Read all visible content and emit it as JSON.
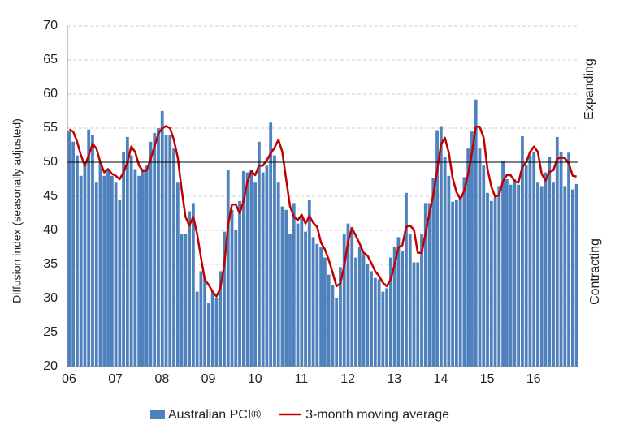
{
  "chart_data": {
    "type": "bar",
    "y_label": "Diffusion index (seasonally adjusted)",
    "annotations": [
      "Expanding",
      "Contracting"
    ],
    "reference_line": 50,
    "ylim": [
      20,
      70
    ],
    "yticks": [
      20,
      25,
      30,
      35,
      40,
      45,
      50,
      55,
      60,
      65,
      70
    ],
    "grid": true,
    "categories": [
      "06",
      null,
      null,
      null,
      null,
      null,
      null,
      null,
      null,
      null,
      null,
      null,
      "07",
      null,
      null,
      null,
      null,
      null,
      null,
      null,
      null,
      null,
      null,
      null,
      "08",
      null,
      null,
      null,
      null,
      null,
      null,
      null,
      null,
      null,
      null,
      null,
      "09",
      null,
      null,
      null,
      null,
      null,
      null,
      null,
      null,
      null,
      null,
      null,
      "10",
      null,
      null,
      null,
      null,
      null,
      null,
      null,
      null,
      null,
      null,
      null,
      "11",
      null,
      null,
      null,
      null,
      null,
      null,
      null,
      null,
      null,
      null,
      null,
      "12",
      null,
      null,
      null,
      null,
      null,
      null,
      null,
      null,
      null,
      null,
      null,
      "13",
      null,
      null,
      null,
      null,
      null,
      null,
      null,
      null,
      null,
      null,
      null,
      "14",
      null,
      null,
      null,
      null,
      null,
      null,
      null,
      null,
      null,
      null,
      null,
      "15",
      null,
      null,
      null,
      null,
      null,
      null,
      null,
      null,
      null,
      null,
      null,
      "16",
      null,
      null,
      null,
      null,
      null,
      null,
      null,
      null,
      null,
      null,
      null
    ],
    "series": [
      {
        "name": "Australian PCI®",
        "type": "bar",
        "color": "#4f81bd",
        "values": [
          54.5,
          53,
          51,
          48,
          50,
          54.8,
          54,
          47,
          50,
          48,
          49,
          48,
          47,
          44.5,
          51.5,
          53.7,
          51,
          49,
          48,
          49,
          49.5,
          53,
          54.3,
          55,
          57.5,
          54,
          54,
          52,
          47,
          39.5,
          39.5,
          42.8,
          44,
          31,
          34,
          33,
          29.3,
          31,
          30,
          34,
          39.8,
          48.8,
          43,
          40,
          44.3,
          48.7,
          48.5,
          48.8,
          47,
          53,
          48.5,
          49.5,
          55.8,
          51,
          47,
          43.5,
          43,
          39.5,
          44,
          41,
          42,
          39.8,
          44.5,
          39,
          38,
          37.5,
          36,
          33.5,
          32,
          30,
          34.6,
          39.5,
          41,
          40.5,
          36,
          37.5,
          36.5,
          35,
          34,
          33,
          32.8,
          31,
          31.5,
          36,
          37.5,
          39,
          37,
          45.5,
          39.5,
          35.3,
          35.3,
          39.5,
          44,
          44,
          47.7,
          54.7,
          55.3,
          50.8,
          48,
          44.2,
          44.5,
          45,
          47.8,
          52,
          54.5,
          59.2,
          52,
          49.5,
          45.5,
          44.3,
          44.8,
          46.5,
          50.2,
          47.5,
          46.7,
          47.5,
          46.7,
          53.8,
          49.6,
          51,
          51.5,
          47,
          46.5,
          48.5,
          50.8,
          47,
          53.7,
          51.5,
          46.5,
          51.4,
          46,
          46.8
        ]
      },
      {
        "name": "3-month moving average",
        "type": "line",
        "color": "#c00000",
        "values": [
          54.8,
          54.5,
          53,
          51,
          49.5,
          51,
          52.7,
          52,
          50,
          48.5,
          49,
          48.3,
          48,
          47.5,
          48.5,
          50,
          52.3,
          51.5,
          49.5,
          48.7,
          48.8,
          50.5,
          52.3,
          54.2,
          55,
          55.3,
          55,
          53.3,
          50.7,
          46,
          42,
          40.7,
          42,
          39.5,
          36,
          32.7,
          32,
          31,
          30.3,
          31.5,
          34.8,
          40.8,
          43.8,
          43.8,
          42.5,
          44.3,
          47.2,
          48.7,
          48.1,
          49.5,
          49.5,
          50.3,
          51.3,
          52.1,
          53.3,
          51.5,
          47.5,
          43.5,
          42,
          41.5,
          42.3,
          41,
          42.1,
          41.1,
          40.5,
          38.2,
          37.2,
          35.7,
          33.8,
          31.8,
          32.2,
          34.7,
          38.4,
          40.3,
          39.2,
          38,
          36.7,
          36.3,
          35.2,
          34,
          33.3,
          32.3,
          31.8,
          32.8,
          35,
          37.5,
          37.8,
          40.5,
          40.7,
          40.1,
          36.7,
          36.7,
          39.6,
          42.5,
          45.2,
          48.8,
          52.6,
          53.6,
          51.4,
          47.7,
          45.6,
          44.6,
          45.8,
          48.3,
          51.4,
          55.2,
          55.2,
          53.6,
          49,
          46.4,
          44.9,
          45.2,
          47.2,
          48.1,
          48.1,
          47.2,
          47,
          49.3,
          50,
          51.5,
          52.3,
          51.5,
          48.3,
          47.3,
          48.6,
          48.8,
          50.5,
          50.7,
          50.6,
          49.8,
          48,
          47.9
        ]
      }
    ]
  }
}
